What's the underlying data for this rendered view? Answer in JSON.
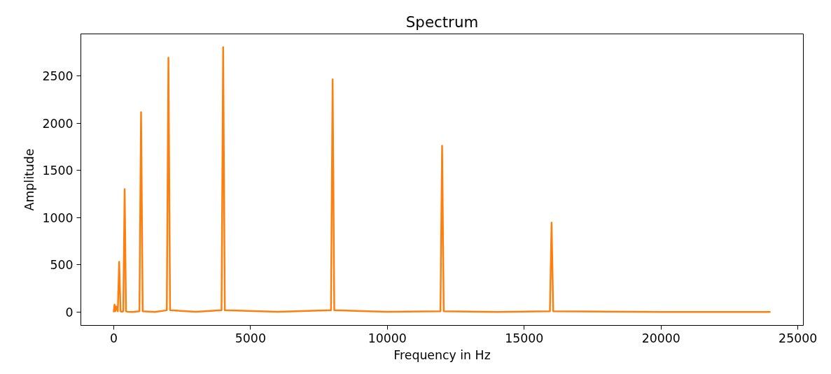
{
  "chart_data": {
    "type": "line",
    "title": "Spectrum",
    "xlabel": "Frequency in Hz",
    "ylabel": "Amplitude",
    "x": [
      0,
      30,
      60,
      100,
      150,
      200,
      250,
      300,
      350,
      400,
      450,
      500,
      700,
      940,
      1000,
      1060,
      1500,
      1940,
      2000,
      2060,
      3000,
      3940,
      4000,
      4060,
      6000,
      7940,
      8000,
      8060,
      10000,
      11940,
      12000,
      12060,
      14000,
      15940,
      16000,
      16060,
      20000,
      24000
    ],
    "series": [
      {
        "color": "#ff7f0e",
        "values": [
          0,
          80,
          10,
          60,
          10,
          533,
          10,
          5,
          10,
          1302,
          10,
          5,
          3,
          10,
          2115,
          10,
          3,
          20,
          2692,
          20,
          5,
          20,
          2803,
          20,
          5,
          20,
          2463,
          20,
          5,
          10,
          1760,
          10,
          3,
          10,
          947,
          10,
          3,
          2
        ]
      }
    ],
    "xlim": [
      -1200,
      25200
    ],
    "ylim": [
      -140,
      2944
    ],
    "xticks": [
      0,
      5000,
      10000,
      15000,
      20000,
      25000
    ],
    "yticks": [
      0,
      500,
      1000,
      1500,
      2000,
      2500
    ],
    "grid": false,
    "marker": "none",
    "line_style": "solid"
  }
}
